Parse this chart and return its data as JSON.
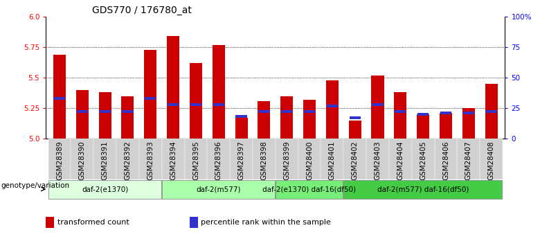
{
  "title": "GDS770 / 176780_at",
  "samples": [
    "GSM28389",
    "GSM28390",
    "GSM28391",
    "GSM28392",
    "GSM28393",
    "GSM28394",
    "GSM28395",
    "GSM28396",
    "GSM28397",
    "GSM28398",
    "GSM28399",
    "GSM28400",
    "GSM28401",
    "GSM28402",
    "GSM28403",
    "GSM28404",
    "GSM28405",
    "GSM28406",
    "GSM28407",
    "GSM28408"
  ],
  "transformed_count": [
    5.69,
    5.4,
    5.38,
    5.35,
    5.73,
    5.84,
    5.62,
    5.77,
    5.17,
    5.31,
    5.35,
    5.32,
    5.48,
    5.15,
    5.52,
    5.38,
    5.2,
    5.21,
    5.25,
    5.45
  ],
  "percentile_rank": [
    5.33,
    5.22,
    5.22,
    5.22,
    5.33,
    5.28,
    5.28,
    5.28,
    5.18,
    5.22,
    5.22,
    5.22,
    5.27,
    5.17,
    5.28,
    5.22,
    5.2,
    5.21,
    5.21,
    5.22
  ],
  "ymin": 5.0,
  "ymax": 6.0,
  "yticks_left": [
    5.0,
    5.25,
    5.5,
    5.75,
    6.0
  ],
  "yticks_right_pct": [
    0,
    25,
    50,
    75,
    100
  ],
  "yticks_right_labels": [
    "0",
    "25",
    "50",
    "75",
    "100%"
  ],
  "bar_color": "#cc0000",
  "percentile_color": "#3333cc",
  "groups": [
    {
      "label": "daf-2(e1370)",
      "start": 0,
      "end": 5,
      "color": "#ddffdd"
    },
    {
      "label": "daf-2(m577)",
      "start": 5,
      "end": 10,
      "color": "#aaffaa"
    },
    {
      "label": "daf-2(e1370) daf-16(df50)",
      "start": 10,
      "end": 13,
      "color": "#77ee77"
    },
    {
      "label": "daf-2(m577) daf-16(df50)",
      "start": 13,
      "end": 20,
      "color": "#44cc44"
    }
  ],
  "genotype_label": "genotype/variation",
  "legend": [
    {
      "label": "transformed count",
      "color": "#cc0000"
    },
    {
      "label": "percentile rank within the sample",
      "color": "#3333cc"
    }
  ],
  "title_fontsize": 10,
  "axis_fontsize": 7.5,
  "group_fontsize": 7.5,
  "legend_fontsize": 8
}
